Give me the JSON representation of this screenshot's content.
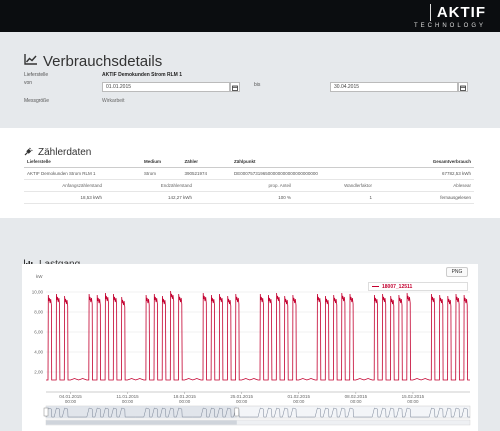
{
  "brand": {
    "name": "AKTIF",
    "sub": "TECHNOLOGY"
  },
  "header": {
    "title": "Verbrauchsdetails",
    "icon": "line-chart-icon"
  },
  "form": {
    "lieferstelle_label": "Lieferstelle",
    "lieferstelle_value": "AKTIF Demokunden Strom RLM 1",
    "von_label": "von",
    "von_value": "01.01.2015",
    "bis_label": "bis",
    "bis_value": "30.04.2015",
    "messgroesse_label": "Messgröße",
    "messgroesse_value": "Wirkarbeit"
  },
  "zaehler": {
    "title": "Zählerdaten",
    "icon": "plug-icon",
    "columns": [
      "Lieferstelle",
      "Medium",
      "Zähler",
      "Zählpunkt",
      "Gesamtverbrauch"
    ],
    "row": [
      "AKTIF Demokunden Strom RLM 1",
      "Strom",
      "390521974",
      "DE0007573196500000000000000000000",
      "67782,53 kWh"
    ],
    "sub_columns": [
      "Anfangszählerstand",
      "Endzählerstand",
      "prop. Anteil",
      "Wandlerfaktor",
      "Ablesear"
    ],
    "sub_row": [
      "18,53 kWh",
      "142,27 kWh",
      "100 %",
      "1",
      "fernausgelesen"
    ]
  },
  "lastgang": {
    "title": "Lastgang",
    "icon": "bar-chart-icon",
    "png_label": "PNG",
    "legend": "18007_12511"
  },
  "colors": {
    "series": "#c3002f",
    "topbar": "#0b0d10",
    "background": "#e6e9ec"
  },
  "chart_data": {
    "type": "line",
    "ylabel": "kW",
    "ylim": [
      0,
      11
    ],
    "yticks": [
      "2,00",
      "4,00",
      "6,00",
      "8,00",
      "10,00"
    ],
    "ytick_values": [
      2,
      4,
      6,
      8,
      10
    ],
    "xticks": [
      {
        "date": "04.01.2015",
        "time": "00:00",
        "day": 3
      },
      {
        "date": "11.01.2015",
        "time": "00:00",
        "day": 10
      },
      {
        "date": "18.01.2015",
        "time": "00:00",
        "day": 17
      },
      {
        "date": "25.01.2015",
        "time": "00:00",
        "day": 24
      },
      {
        "date": "01.02.2015",
        "time": "00:00",
        "day": 31
      },
      {
        "date": "08.02.2015",
        "time": "00:00",
        "day": 38
      },
      {
        "date": "15.02.2015",
        "time": "00:00",
        "day": 45
      }
    ],
    "xlim_days": [
      0,
      52
    ],
    "series": [
      {
        "name": "18007_12511",
        "day_peaks": [
          9.7,
          9.8,
          9.6,
          0,
          0,
          9.8,
          9.7,
          9.9,
          9.8,
          9.5,
          0,
          0,
          9.7,
          9.8,
          9.6,
          10.1,
          9.8,
          0,
          0,
          9.9,
          9.7,
          9.8,
          9.6,
          9.8,
          0,
          0,
          9.8,
          9.7,
          9.9,
          9.6,
          9.7,
          0,
          0,
          9.8,
          9.6,
          9.7,
          9.9,
          9.8,
          0,
          0,
          9.7,
          9.8,
          9.6,
          9.7,
          9.9,
          0,
          0,
          9.8,
          9.7,
          9.6,
          9.8,
          9.7
        ],
        "base_level": 1.2
      }
    ]
  }
}
